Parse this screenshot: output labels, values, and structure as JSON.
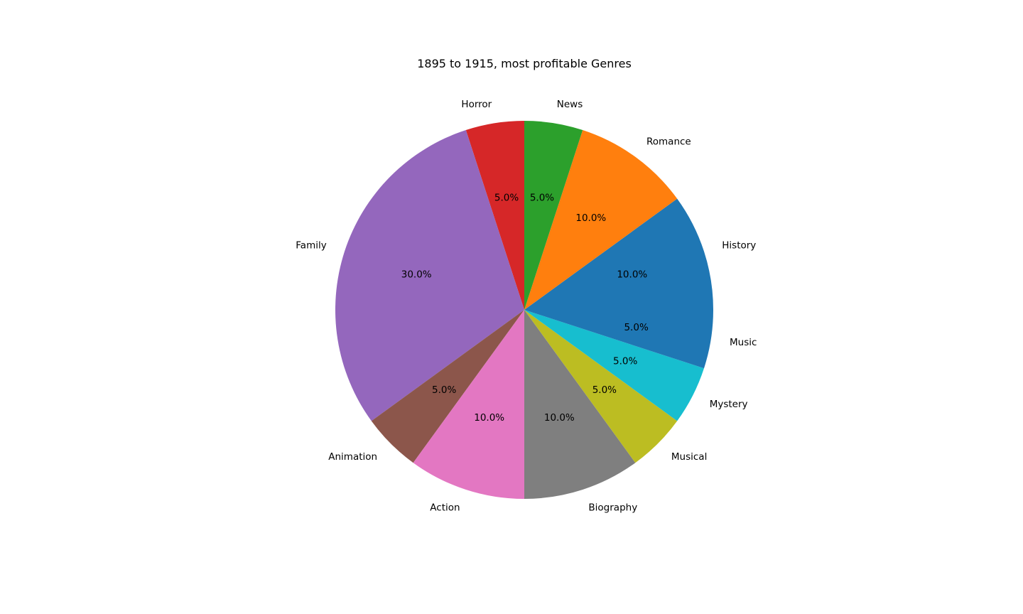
{
  "chart_data": {
    "type": "pie",
    "title": "1895 to 1915, most profitable Genres",
    "start_angle_deg": 0,
    "direction": "counterclockwise",
    "slices": [
      {
        "label": "History",
        "value": 10.0,
        "pct_label": "10.0%",
        "color": "#1f77b4"
      },
      {
        "label": "Romance",
        "value": 10.0,
        "pct_label": "10.0%",
        "color": "#ff7f0e"
      },
      {
        "label": "News",
        "value": 5.0,
        "pct_label": "5.0%",
        "color": "#2ca02c"
      },
      {
        "label": "Horror",
        "value": 5.0,
        "pct_label": "5.0%",
        "color": "#d62728"
      },
      {
        "label": "Family",
        "value": 30.0,
        "pct_label": "30.0%",
        "color": "#9467bd"
      },
      {
        "label": "Animation",
        "value": 5.0,
        "pct_label": "5.0%",
        "color": "#8c564b"
      },
      {
        "label": "Action",
        "value": 10.0,
        "pct_label": "10.0%",
        "color": "#e377c2"
      },
      {
        "label": "Biography",
        "value": 10.0,
        "pct_label": "10.0%",
        "color": "#7f7f7f"
      },
      {
        "label": "Musical",
        "value": 5.0,
        "pct_label": "5.0%",
        "color": "#bcbd22"
      },
      {
        "label": "Mystery",
        "value": 5.0,
        "pct_label": "5.0%",
        "color": "#17becf"
      },
      {
        "label": "Music",
        "value": 5.0,
        "pct_label": "5.0%",
        "color": "#1f77b4"
      }
    ]
  }
}
